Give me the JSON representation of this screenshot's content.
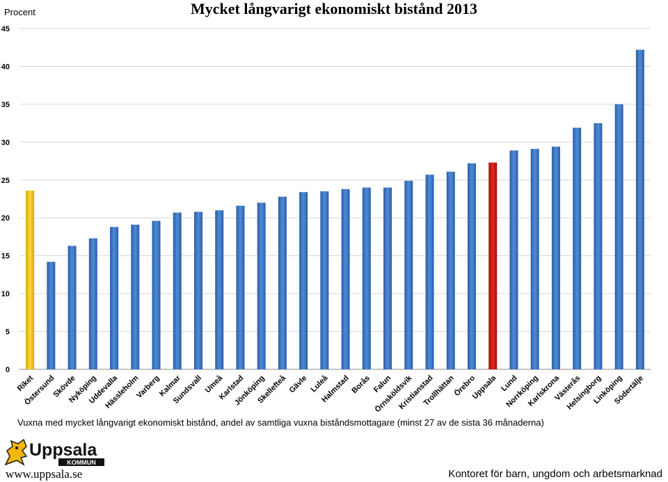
{
  "chart_data": {
    "type": "bar",
    "title": "Mycket långvarigt ekonomiskt bistånd 2013",
    "ylabel": "Procent",
    "subtitle": "Vuxna med mycket långvarigt ekonomiskt bistånd, andel av samtliga vuxna biståndsmottagare (minst 27 av de sista 36 månaderna)",
    "ylim": [
      0,
      45
    ],
    "yticks": [
      0,
      5,
      10,
      15,
      20,
      25,
      30,
      35,
      40,
      45
    ],
    "grid": true,
    "categories": [
      "Riket",
      "Östersund",
      "Skövde",
      "Nyköping",
      "Uddevalla",
      "Hässleholm",
      "Varberg",
      "Kalmar",
      "Sundsvall",
      "Umeå",
      "Karlstad",
      "Jönköping",
      "Skellefteå",
      "Gävle",
      "Luleå",
      "Halmstad",
      "Borås",
      "Falun",
      "Örnsköldsvik",
      "Kristianstad",
      "Trollhättan",
      "Örebro",
      "Uppsala",
      "Lund",
      "Norrköping",
      "Karlskrona",
      "Västerås",
      "Helsingborg",
      "Linköping",
      "Södertälje"
    ],
    "values": [
      23.6,
      14.2,
      16.3,
      17.3,
      18.8,
      19.1,
      19.6,
      20.7,
      20.8,
      21.0,
      21.6,
      22.0,
      22.8,
      23.4,
      23.5,
      23.8,
      24.0,
      24.0,
      24.9,
      25.7,
      26.1,
      27.2,
      27.3,
      28.9,
      29.1,
      29.4,
      31.9,
      32.5,
      35.0,
      42.2
    ],
    "highlight_colors": {
      "Riket": "#F2C31B",
      "Uppsala": "#CC1B12"
    },
    "default_color": "#3C74C2"
  },
  "branding": {
    "logo_text": "Uppsala",
    "logo_subtext": "KOMMUN",
    "url": "www.uppsala.se",
    "department": "Kontoret för barn, ungdom och arbetsmarknad"
  }
}
